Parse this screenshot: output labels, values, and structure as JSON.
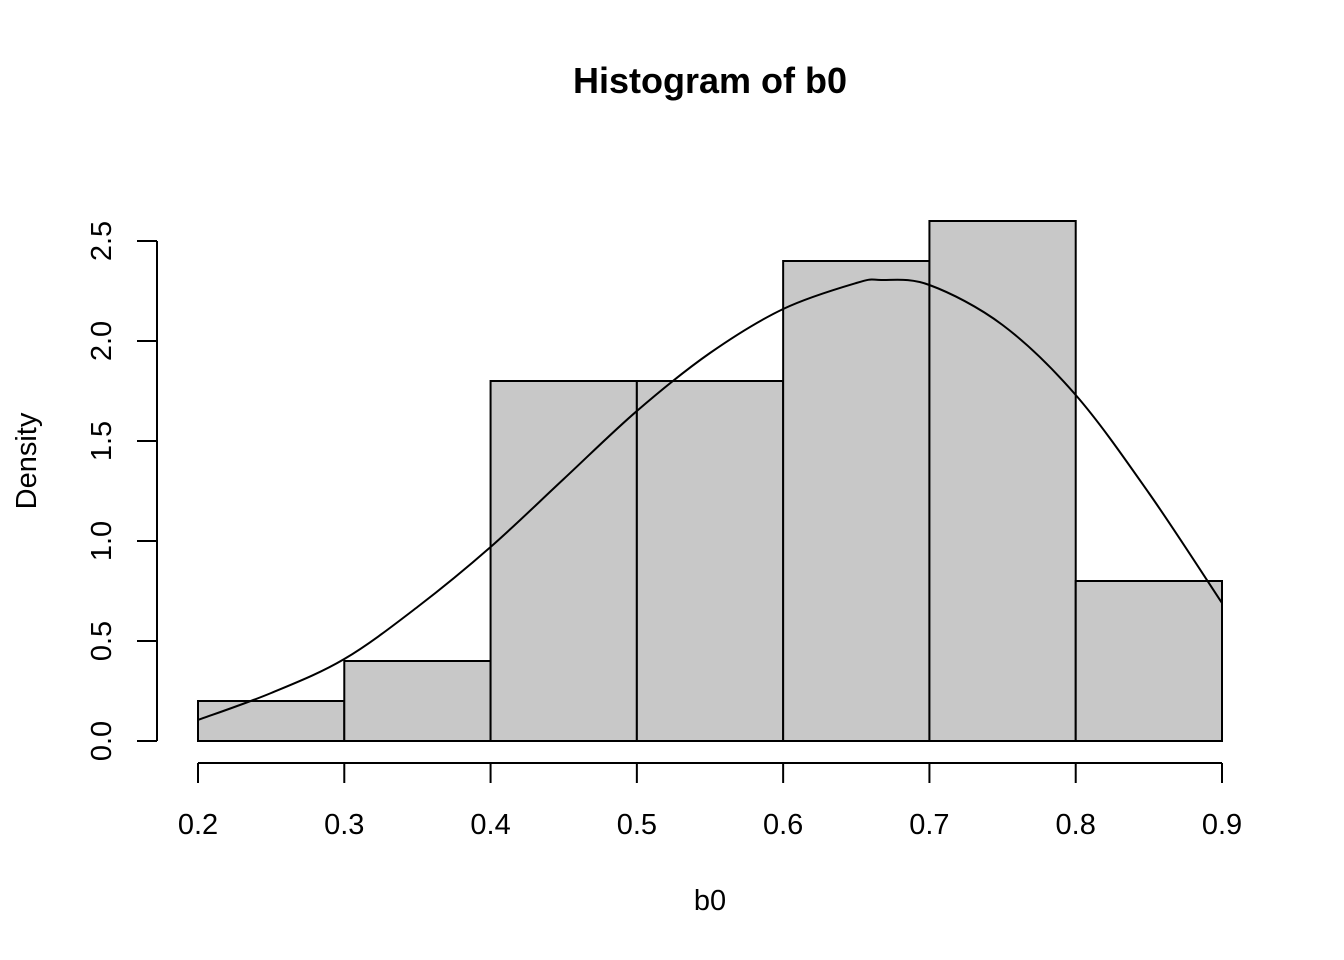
{
  "chart_data": {
    "type": "bar",
    "title": "Histogram of b0",
    "xlabel": "b0",
    "ylabel": "Density",
    "bins": [
      {
        "x0": 0.2,
        "x1": 0.3,
        "density": 0.2
      },
      {
        "x0": 0.3,
        "x1": 0.4,
        "density": 0.4
      },
      {
        "x0": 0.4,
        "x1": 0.5,
        "density": 1.8
      },
      {
        "x0": 0.5,
        "x1": 0.6,
        "density": 1.8
      },
      {
        "x0": 0.6,
        "x1": 0.7,
        "density": 2.4
      },
      {
        "x0": 0.7,
        "x1": 0.8,
        "density": 2.6
      },
      {
        "x0": 0.8,
        "x1": 0.9,
        "density": 0.8
      }
    ],
    "curve": {
      "x": [
        0.2,
        0.25,
        0.3,
        0.35,
        0.4,
        0.45,
        0.5,
        0.55,
        0.6,
        0.65,
        0.667,
        0.7,
        0.75,
        0.8,
        0.85,
        0.9
      ],
      "y": [
        0.105,
        0.24,
        0.41,
        0.67,
        0.97,
        1.31,
        1.65,
        1.94,
        2.16,
        2.29,
        2.305,
        2.28,
        2.08,
        1.73,
        1.24,
        0.69
      ]
    },
    "xlim": [
      0.2,
      0.9
    ],
    "ylim": [
      0,
      2.6
    ],
    "xticks": [
      "0.2",
      "0.3",
      "0.4",
      "0.5",
      "0.6",
      "0.7",
      "0.8",
      "0.9"
    ],
    "yticks": [
      "0.0",
      "0.5",
      "1.0",
      "1.5",
      "2.0",
      "2.5"
    ],
    "grid": false,
    "colors": {
      "bar_fill": "#c8c8c8",
      "stroke": "#000000"
    }
  }
}
